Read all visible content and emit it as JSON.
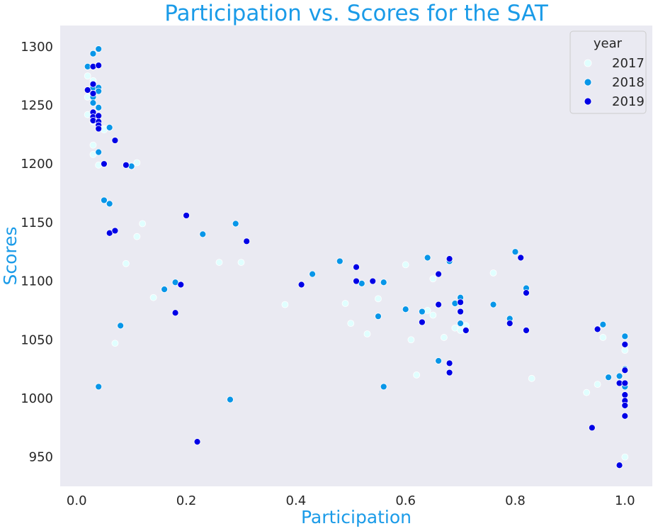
{
  "chart_data": {
    "type": "scatter",
    "title": "Participation vs. Scores for the SAT",
    "xlabel": "Participation",
    "ylabel": "Scores",
    "xlim": [
      -0.03,
      1.05
    ],
    "ylim": [
      925,
      1318
    ],
    "xticks": [
      0.0,
      0.2,
      0.4,
      0.6,
      0.8,
      1.0
    ],
    "xtick_labels": [
      "0.0",
      "0.2",
      "0.4",
      "0.6",
      "0.8",
      "1.0"
    ],
    "yticks": [
      950,
      1000,
      1050,
      1100,
      1150,
      1200,
      1250,
      1300
    ],
    "ytick_labels": [
      "950",
      "1000",
      "1050",
      "1100",
      "1150",
      "1200",
      "1250",
      "1300"
    ],
    "grid": false,
    "legend": {
      "title": "year",
      "placement": "top-right"
    },
    "colors": {
      "title": "#1a9be8",
      "axis_label": "#1a9be8",
      "plot_bg": "#eaeaf2",
      "2017": "#e0ffff",
      "2018": "#0896e8",
      "2019": "#0000e6"
    },
    "series": [
      {
        "name": "2017",
        "points": [
          [
            0.02,
            1275
          ],
          [
            0.02,
            1257
          ],
          [
            0.02,
            1242
          ],
          [
            0.03,
            1271
          ],
          [
            0.03,
            1216
          ],
          [
            0.03,
            1208
          ],
          [
            0.03,
            1236
          ],
          [
            0.04,
            1199
          ],
          [
            0.04,
            1262
          ],
          [
            0.05,
            1230
          ],
          [
            0.05,
            1229
          ],
          [
            0.09,
            1115
          ],
          [
            0.1,
            1198
          ],
          [
            0.11,
            1201
          ],
          [
            0.11,
            1138
          ],
          [
            0.12,
            1149
          ],
          [
            0.14,
            1086
          ],
          [
            0.07,
            1047
          ],
          [
            0.26,
            1116
          ],
          [
            0.3,
            1116
          ],
          [
            0.38,
            1080
          ],
          [
            0.49,
            1081
          ],
          [
            0.5,
            1064
          ],
          [
            0.53,
            1055
          ],
          [
            0.55,
            1085
          ],
          [
            0.6,
            1114
          ],
          [
            0.61,
            1050
          ],
          [
            0.62,
            1020
          ],
          [
            0.64,
            1075
          ],
          [
            0.65,
            1102
          ],
          [
            0.65,
            1071
          ],
          [
            0.67,
            1052
          ],
          [
            0.69,
            1060
          ],
          [
            0.7,
            1058
          ],
          [
            0.71,
            1062
          ],
          [
            0.76,
            1107
          ],
          [
            0.83,
            1017
          ],
          [
            0.93,
            1005
          ],
          [
            0.95,
            1012
          ],
          [
            0.96,
            1052
          ],
          [
            1.0,
            1041
          ],
          [
            1.0,
            1012
          ],
          [
            1.0,
            996
          ],
          [
            1.0,
            950
          ],
          [
            1.0,
            1025
          ]
        ]
      },
      {
        "name": "2018",
        "points": [
          [
            0.02,
            1283
          ],
          [
            0.03,
            1294
          ],
          [
            0.03,
            1265
          ],
          [
            0.03,
            1257
          ],
          [
            0.03,
            1252
          ],
          [
            0.04,
            1298
          ],
          [
            0.04,
            1265
          ],
          [
            0.04,
            1262
          ],
          [
            0.04,
            1248
          ],
          [
            0.04,
            1210
          ],
          [
            0.04,
            1010
          ],
          [
            0.05,
            1169
          ],
          [
            0.06,
            1166
          ],
          [
            0.06,
            1231
          ],
          [
            0.08,
            1062
          ],
          [
            0.1,
            1198
          ],
          [
            0.16,
            1093
          ],
          [
            0.18,
            1099
          ],
          [
            0.23,
            1140
          ],
          [
            0.28,
            999
          ],
          [
            0.29,
            1149
          ],
          [
            0.43,
            1106
          ],
          [
            0.48,
            1117
          ],
          [
            0.52,
            1098
          ],
          [
            0.55,
            1070
          ],
          [
            0.56,
            1099
          ],
          [
            0.56,
            1010
          ],
          [
            0.6,
            1076
          ],
          [
            0.63,
            1074
          ],
          [
            0.64,
            1120
          ],
          [
            0.66,
            1032
          ],
          [
            0.68,
            1117
          ],
          [
            0.69,
            1081
          ],
          [
            0.7,
            1086
          ],
          [
            0.7,
            1064
          ],
          [
            0.76,
            1080
          ],
          [
            0.79,
            1068
          ],
          [
            0.8,
            1125
          ],
          [
            0.82,
            1094
          ],
          [
            0.96,
            1063
          ],
          [
            0.97,
            1018
          ],
          [
            0.99,
            1019
          ],
          [
            1.0,
            1053
          ],
          [
            1.0,
            1025
          ],
          [
            1.0,
            1010
          ]
        ]
      },
      {
        "name": "2019",
        "points": [
          [
            0.02,
            1263
          ],
          [
            0.03,
            1283
          ],
          [
            0.03,
            1268
          ],
          [
            0.03,
            1260
          ],
          [
            0.03,
            1244
          ],
          [
            0.03,
            1240
          ],
          [
            0.03,
            1237
          ],
          [
            0.04,
            1284
          ],
          [
            0.04,
            1241
          ],
          [
            0.04,
            1236
          ],
          [
            0.04,
            1233
          ],
          [
            0.04,
            1230
          ],
          [
            0.05,
            1200
          ],
          [
            0.06,
            1141
          ],
          [
            0.07,
            1143
          ],
          [
            0.07,
            1220
          ],
          [
            0.09,
            1199
          ],
          [
            0.18,
            1073
          ],
          [
            0.19,
            1097
          ],
          [
            0.2,
            1156
          ],
          [
            0.22,
            963
          ],
          [
            0.31,
            1134
          ],
          [
            0.41,
            1097
          ],
          [
            0.51,
            1112
          ],
          [
            0.51,
            1100
          ],
          [
            0.54,
            1100
          ],
          [
            0.63,
            1065
          ],
          [
            0.66,
            1106
          ],
          [
            0.66,
            1080
          ],
          [
            0.68,
            1119
          ],
          [
            0.68,
            1030
          ],
          [
            0.68,
            1022
          ],
          [
            0.7,
            1082
          ],
          [
            0.7,
            1074
          ],
          [
            0.71,
            1058
          ],
          [
            0.79,
            1064
          ],
          [
            0.81,
            1120
          ],
          [
            0.82,
            1090
          ],
          [
            0.82,
            1058
          ],
          [
            0.94,
            975
          ],
          [
            0.95,
            1059
          ],
          [
            0.99,
            1013
          ],
          [
            0.99,
            943
          ],
          [
            1.0,
            1046
          ],
          [
            1.0,
            1024
          ],
          [
            1.0,
            1013
          ],
          [
            1.0,
            1003
          ],
          [
            1.0,
            998
          ],
          [
            1.0,
            994
          ],
          [
            1.0,
            985
          ]
        ]
      }
    ]
  }
}
